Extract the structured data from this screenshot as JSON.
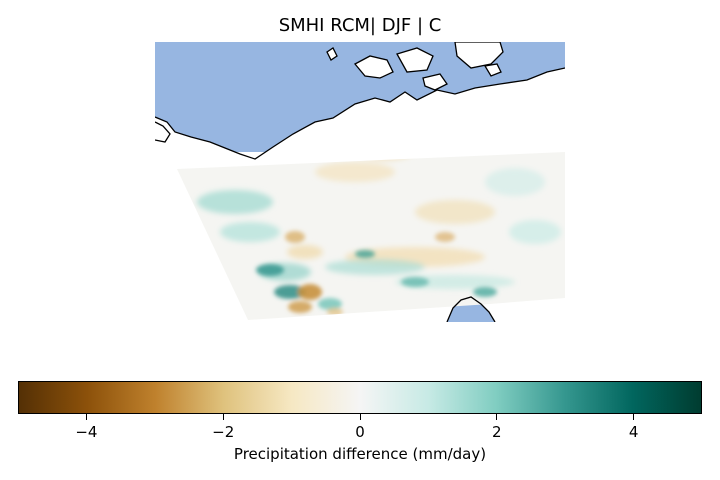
{
  "title": "SMHI RCM| DJF | C",
  "map": {
    "ocean_color": "#97b6e1",
    "coastline_color": "#000000",
    "land_color": "#ffffff"
  },
  "colorbar": {
    "label": "Precipitation difference (mm/day)",
    "colormap": "BrBG",
    "vmin": -5,
    "vmax": 5,
    "ticks": [
      {
        "value": -4,
        "label": "−4"
      },
      {
        "value": -2,
        "label": "−2"
      },
      {
        "value": 0,
        "label": "0"
      },
      {
        "value": 2,
        "label": "2"
      },
      {
        "value": 4,
        "label": "4"
      }
    ],
    "colors": [
      "#543005",
      "#8c510a",
      "#bf812d",
      "#dfc27d",
      "#f6e8c3",
      "#f5f5f5",
      "#c7eae5",
      "#80cdc1",
      "#35978f",
      "#01665e",
      "#003c30"
    ]
  }
}
